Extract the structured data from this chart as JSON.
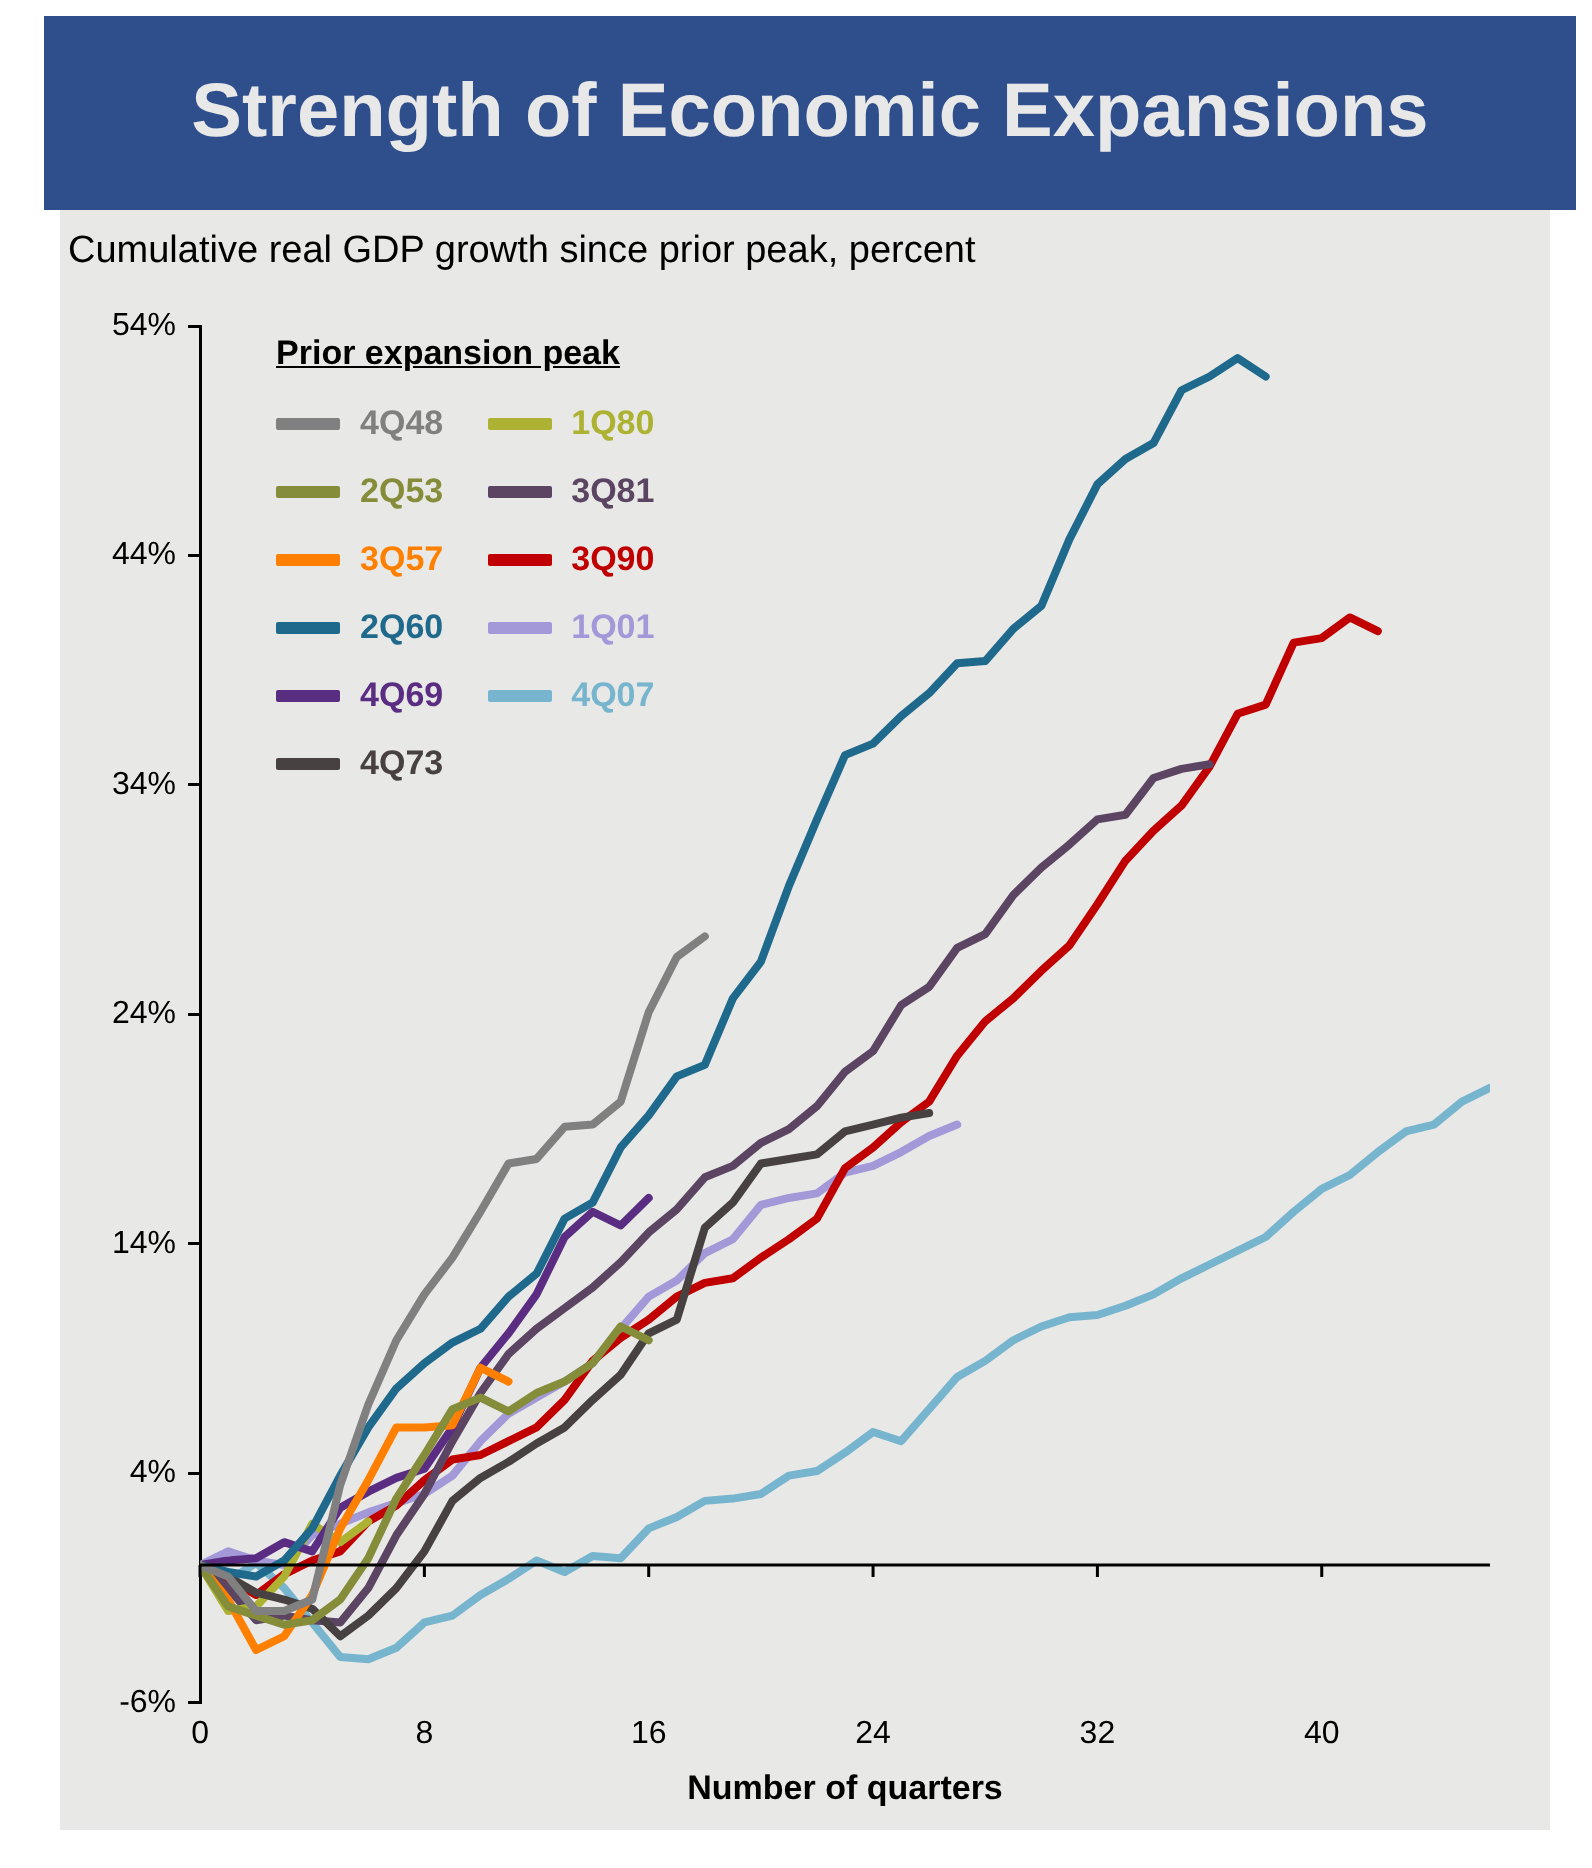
{
  "chart_data": {
    "type": "line",
    "title": "Strength of Economic Expansions",
    "ylabel": "Cumulative real GDP growth since prior peak, percent",
    "xlabel": "Number of quarters",
    "legend_title": "Prior expansion peak",
    "x": [
      0,
      1,
      2,
      3,
      4,
      5,
      6,
      7,
      8,
      9,
      10,
      11,
      12,
      13,
      14,
      15,
      16,
      17,
      18,
      19,
      20,
      21,
      22,
      23,
      24,
      25,
      26,
      27,
      28,
      29,
      30,
      31,
      32,
      33,
      34,
      35,
      36,
      37,
      38,
      39,
      40,
      41,
      42,
      43,
      44,
      45,
      46
    ],
    "series": [
      {
        "name": "4Q48",
        "color": "#808080",
        "values": [
          0,
          -0.5,
          -2,
          -2,
          -1.5,
          3.5,
          7,
          9.8,
          11.8,
          13.4,
          15.4,
          17.5,
          17.7,
          19.1,
          19.2,
          20.2,
          24.1,
          26.5,
          27.4,
          null,
          null,
          null,
          null,
          null,
          null,
          null,
          null,
          null,
          null,
          null,
          null,
          null,
          null,
          null,
          null,
          null,
          null,
          null,
          null,
          null,
          null,
          null,
          null,
          null,
          null,
          null,
          null
        ]
      },
      {
        "name": "2Q53",
        "color": "#868d3a",
        "values": [
          0,
          -1.8,
          -2.2,
          -2.6,
          -2.4,
          -1.5,
          0.3,
          2.9,
          4.8,
          6.8,
          7.3,
          6.7,
          7.5,
          8,
          8.8,
          10.4,
          9.8,
          null,
          null,
          null,
          null,
          null,
          null,
          null,
          null,
          null,
          null,
          null,
          null,
          null,
          null,
          null,
          null,
          null,
          null,
          null,
          null,
          null,
          null,
          null,
          null,
          null,
          null,
          null,
          null,
          null,
          null
        ]
      },
      {
        "name": "3Q57",
        "color": "#ff8000",
        "values": [
          0,
          -1.5,
          -3.7,
          -3.1,
          -1.3,
          1.6,
          3.7,
          6,
          6,
          6.1,
          8.6,
          8,
          null,
          null,
          null,
          null,
          null,
          null,
          null,
          null,
          null,
          null,
          null,
          null,
          null,
          null,
          null,
          null,
          null,
          null,
          null,
          null,
          null,
          null,
          null,
          null,
          null,
          null,
          null,
          null,
          null,
          null,
          null,
          null,
          null,
          null,
          null
        ]
      },
      {
        "name": "2Q60",
        "color": "#1f6a8c",
        "values": [
          0,
          -0.3,
          -0.5,
          0.2,
          1.6,
          3.9,
          6,
          7.7,
          8.8,
          9.7,
          10.3,
          11.7,
          12.7,
          15.1,
          15.8,
          18.2,
          19.6,
          21.3,
          21.8,
          24.7,
          26.3,
          29.6,
          32.5,
          35.3,
          35.8,
          37,
          38,
          39.3,
          39.4,
          40.8,
          41.8,
          44.7,
          47.1,
          48.2,
          48.9,
          51.2,
          51.8,
          52.6,
          51.8,
          null,
          null,
          null,
          null,
          null,
          null,
          null,
          null
        ]
      },
      {
        "name": "4Q69",
        "color": "#5a2d82",
        "values": [
          0,
          0.2,
          0.3,
          1,
          0.6,
          2.5,
          3.2,
          3.8,
          4.2,
          6,
          8.6,
          10.1,
          11.8,
          14.3,
          15.4,
          14.8,
          16,
          null,
          null,
          null,
          null,
          null,
          null,
          null,
          null,
          null,
          null,
          null,
          null,
          null,
          null,
          null,
          null,
          null,
          null,
          null,
          null,
          null,
          null,
          null,
          null,
          null,
          null,
          null,
          null,
          null,
          null
        ]
      },
      {
        "name": "4Q73",
        "color": "#474241",
        "values": [
          0,
          -0.5,
          -1.2,
          -1.5,
          -1.9,
          -3.1,
          -2.2,
          -1,
          0.6,
          2.8,
          3.8,
          4.5,
          5.3,
          6,
          7.2,
          8.3,
          10.1,
          10.7,
          14.7,
          15.8,
          17.5,
          17.7,
          17.9,
          18.9,
          19.2,
          19.5,
          19.7,
          null,
          null,
          null,
          null,
          null,
          null,
          null,
          null,
          null,
          null,
          null,
          null,
          null,
          null,
          null,
          null,
          null,
          null,
          null,
          null
        ]
      },
      {
        "name": "1Q80",
        "color": "#adb232",
        "values": [
          0,
          -2,
          -1.8,
          -0.5,
          1.8,
          1,
          1.9,
          null,
          null,
          null,
          null,
          null,
          null,
          null,
          null,
          null,
          null,
          null,
          null,
          null,
          null,
          null,
          null,
          null,
          null,
          null,
          null,
          null,
          null,
          null,
          null,
          null,
          null,
          null,
          null,
          null,
          null,
          null,
          null,
          null,
          null,
          null,
          null,
          null,
          null,
          null,
          null
        ]
      },
      {
        "name": "3Q81",
        "color": "#5c4563",
        "values": [
          0,
          -1,
          -2.4,
          -2.2,
          -2.4,
          -2.5,
          -1,
          1.3,
          3.1,
          5.4,
          7.5,
          9.2,
          10.3,
          11.2,
          12.1,
          13.2,
          14.5,
          15.5,
          16.9,
          17.4,
          18.4,
          19,
          20,
          21.5,
          22.4,
          24.4,
          25.2,
          26.9,
          27.5,
          29.2,
          30.4,
          31.4,
          32.5,
          32.7,
          34.3,
          34.7,
          34.9,
          null,
          null,
          null,
          null,
          null,
          null,
          null,
          null,
          null,
          null
        ]
      },
      {
        "name": "3Q90",
        "color": "#c00000",
        "values": [
          0,
          -0.6,
          -1.3,
          -0.4,
          0.2,
          0.6,
          1.9,
          2.6,
          3.7,
          4.6,
          4.8,
          5.4,
          6,
          7.2,
          8.9,
          9.9,
          10.7,
          11.7,
          12.3,
          12.5,
          13.4,
          14.2,
          15.1,
          17.3,
          18.2,
          19.3,
          20.2,
          22.2,
          23.7,
          24.7,
          25.9,
          27,
          28.8,
          30.7,
          32,
          33.1,
          34.8,
          37.1,
          37.5,
          40.2,
          40.4,
          41.3,
          40.7,
          null,
          null,
          null,
          null
        ]
      },
      {
        "name": "1Q01",
        "color": "#a398d8",
        "values": [
          0,
          0.6,
          0.2,
          0,
          1.3,
          1.8,
          2.3,
          2.7,
          3.1,
          3.9,
          5.4,
          6.6,
          7.3,
          8,
          8.8,
          10.3,
          11.7,
          12.4,
          13.6,
          14.2,
          15.7,
          16,
          16.2,
          17.1,
          17.4,
          18,
          18.7,
          19.2,
          null,
          null,
          null,
          null,
          null,
          null,
          null,
          null,
          null,
          null,
          null,
          null,
          null,
          null,
          null,
          null,
          null,
          null,
          null
        ]
      },
      {
        "name": "4Q07",
        "color": "#77b5cf",
        "values": [
          0,
          -0.7,
          0.1,
          -1,
          -2.5,
          -4,
          -4.1,
          -3.6,
          -2.5,
          -2.2,
          -1.3,
          -0.6,
          0.2,
          -0.3,
          0.4,
          0.3,
          1.6,
          2.1,
          2.8,
          2.9,
          3.1,
          3.9,
          4.1,
          4.9,
          5.8,
          5.4,
          6.8,
          8.2,
          8.9,
          9.8,
          10.4,
          10.8,
          10.9,
          11.3,
          11.8,
          12.5,
          13.1,
          13.7,
          14.3,
          15.4,
          16.4,
          17,
          18,
          18.9,
          19.2,
          20.2,
          20.8
        ]
      }
    ],
    "xlim": [
      0,
      46
    ],
    "xticks": [
      0,
      8,
      16,
      24,
      32,
      40
    ],
    "ylim": [
      -6,
      54
    ],
    "yticks": [
      {
        "value": -6,
        "label": "-6%"
      },
      {
        "value": 4,
        "label": "4%"
      },
      {
        "value": 14,
        "label": "14%"
      },
      {
        "value": 24,
        "label": "24%"
      },
      {
        "value": 34,
        "label": "34%"
      },
      {
        "value": 44,
        "label": "44%"
      },
      {
        "value": 54,
        "label": "54%"
      }
    ],
    "legend": "top left",
    "marker": "none",
    "line_style": "solid",
    "grid": false
  }
}
